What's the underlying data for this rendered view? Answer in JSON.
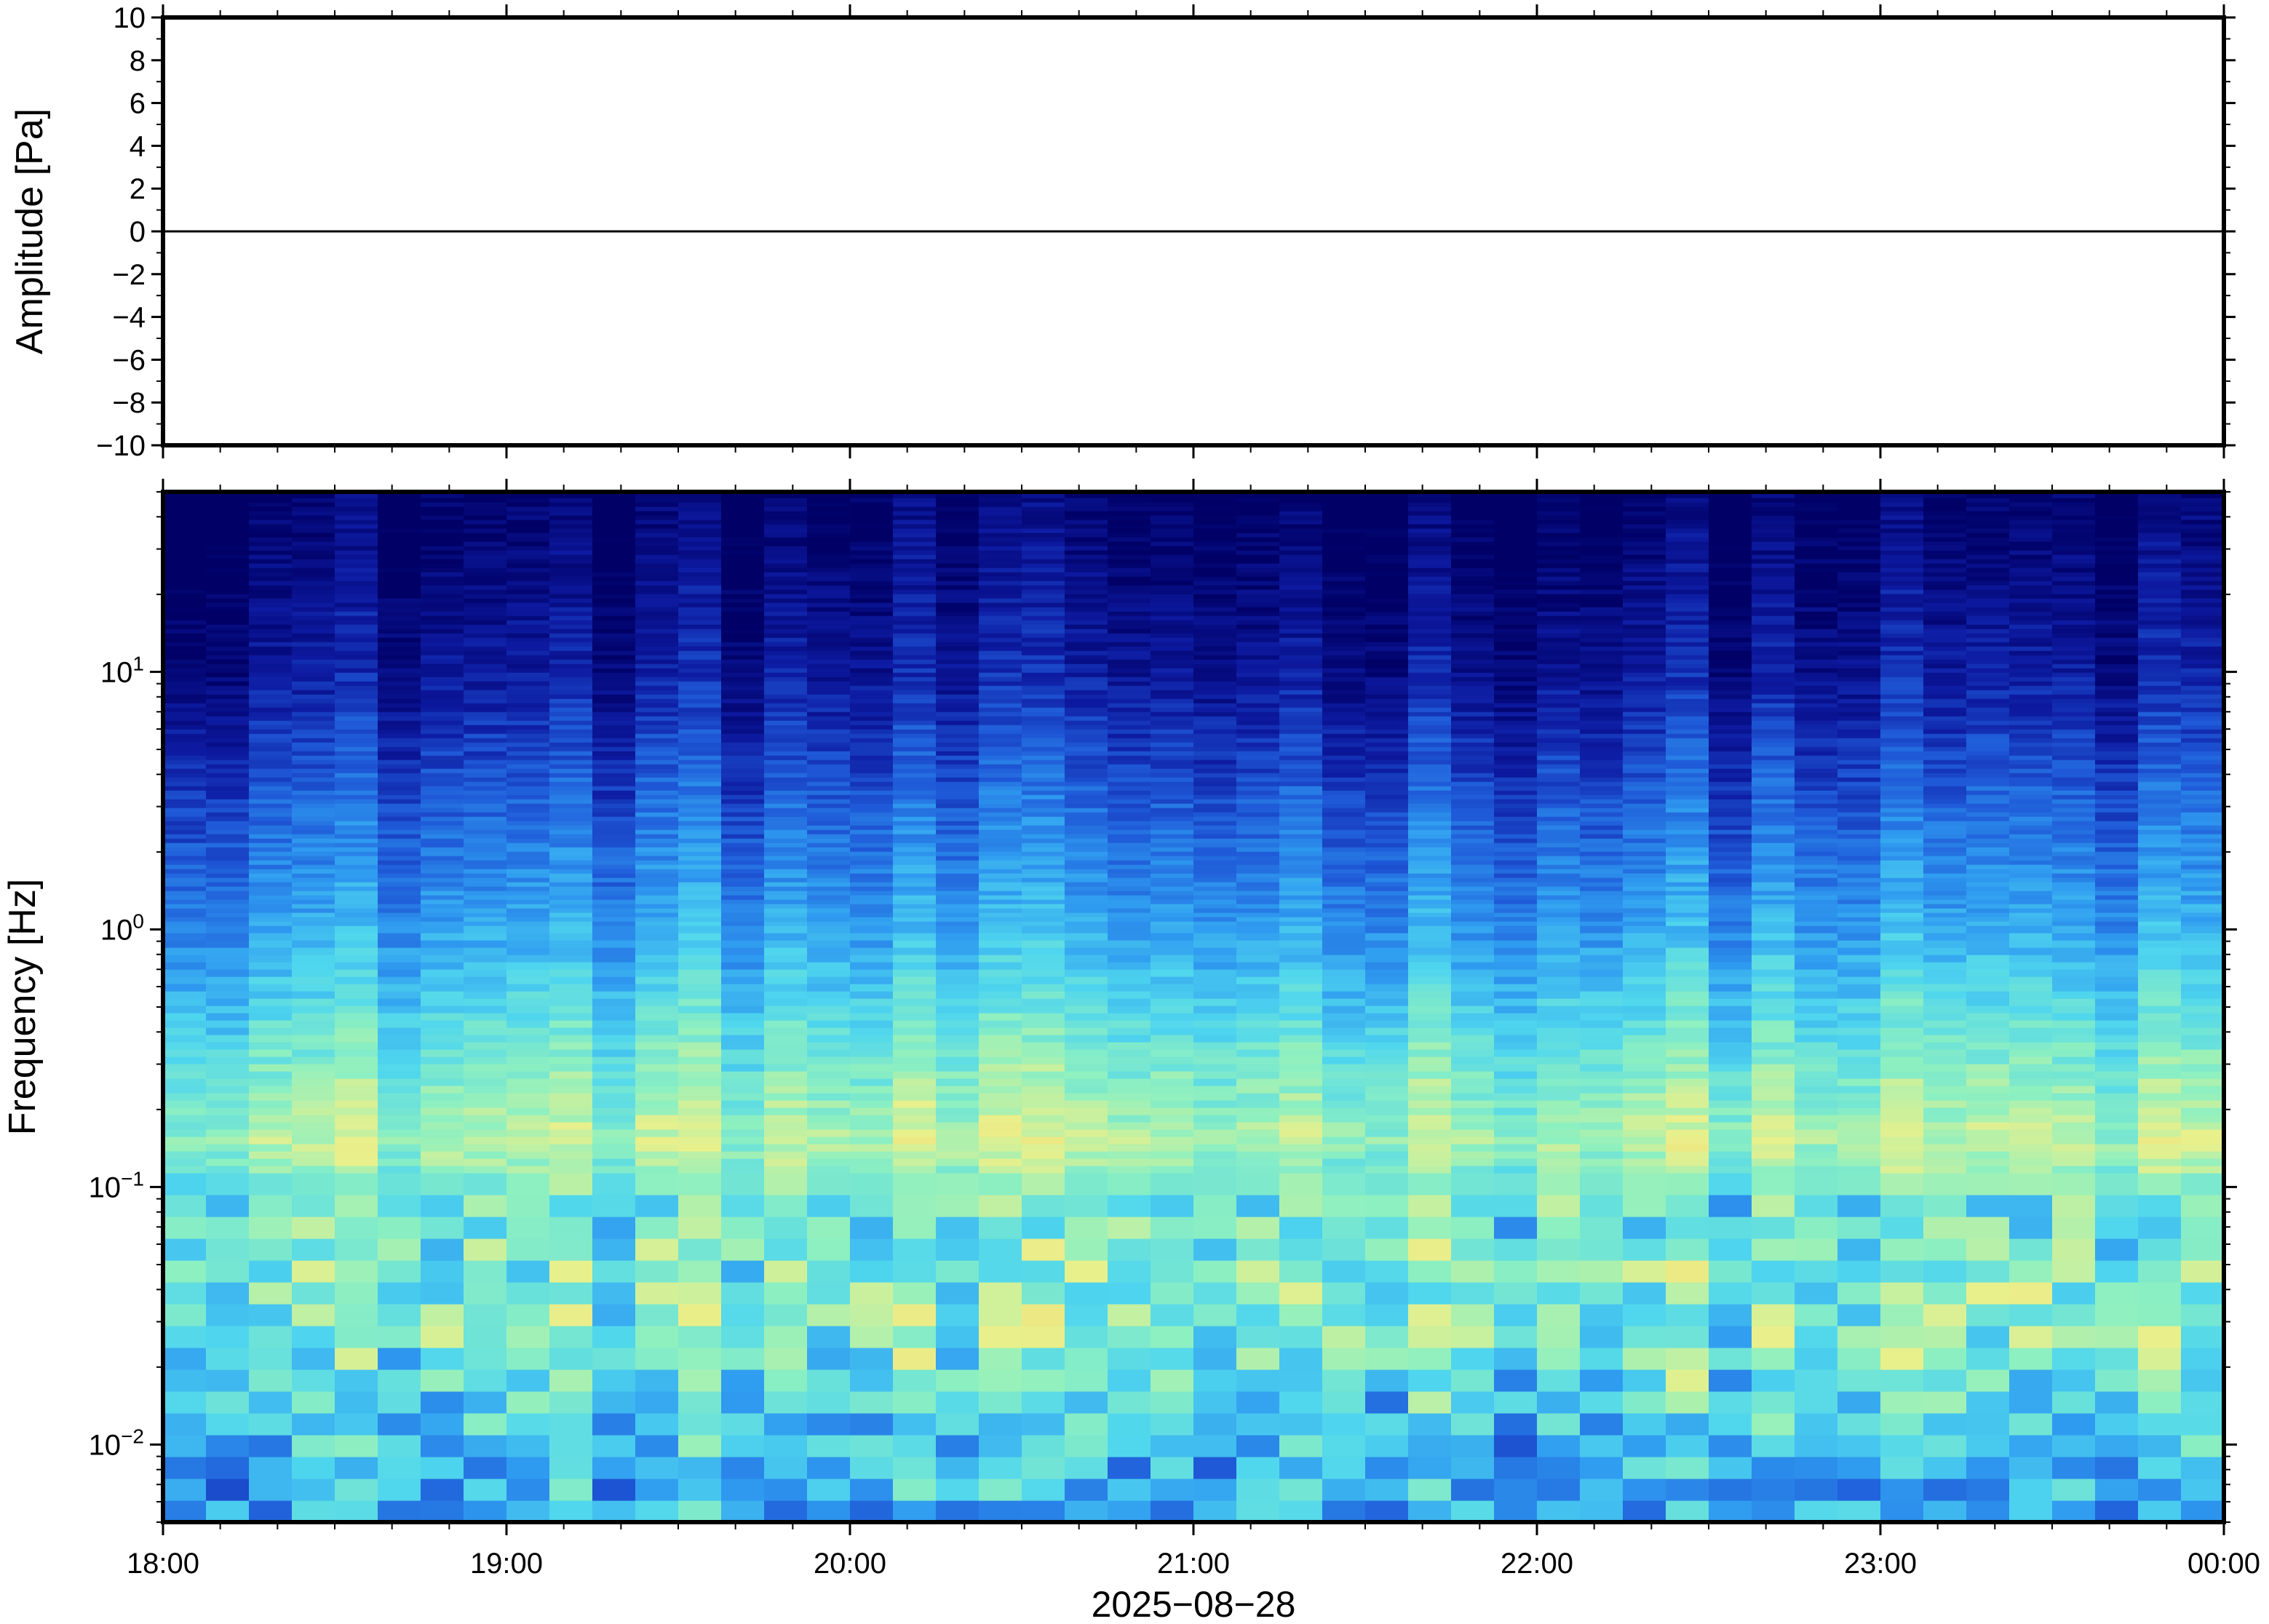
{
  "chart_data": [
    {
      "type": "line",
      "panel": "waveform",
      "ylabel": "Amplitude [Pa]",
      "ylim": [
        -10,
        10
      ],
      "yticks": [
        10,
        8,
        6,
        4,
        2,
        0,
        -2,
        -4,
        -6,
        -8,
        -10
      ],
      "ytick_labels": [
        "10",
        "8",
        "6",
        "4",
        "2",
        "0",
        "−2",
        "−4",
        "−6",
        "−8",
        "−10"
      ],
      "xlim": [
        "18:00",
        "00:00"
      ],
      "series": [
        {
          "description": "near-constant trace at 0 Pa across the full window",
          "color": "#000000",
          "x": [
            "18:00",
            "00:00"
          ],
          "y": [
            0,
            0
          ]
        }
      ],
      "grid": false
    },
    {
      "type": "heatmap",
      "panel": "spectrogram",
      "ylabel": "Frequency [Hz]",
      "yscale": "log",
      "ylim": [
        0.005,
        50
      ],
      "yticks": [
        10,
        1,
        0.1,
        0.01
      ],
      "ytick_labels": [
        {
          "base": "10",
          "exp": "1"
        },
        {
          "base": "10",
          "exp": "0"
        },
        {
          "base": "10",
          "exp": "−1"
        },
        {
          "base": "10",
          "exp": "−2"
        }
      ],
      "xlim": [
        "18:00",
        "00:00"
      ],
      "colormap": [
        "#000066",
        "#0d1aa0",
        "#1f5ad8",
        "#2f9bf0",
        "#4fd6ee",
        "#8ef0c0",
        "#e8f08c",
        "#f8d870"
      ],
      "approx_power_profile": [
        {
          "freq_hz": 50,
          "level": 0.0
        },
        {
          "freq_hz": 10,
          "level": 0.12
        },
        {
          "freq_hz": 3,
          "level": 0.3
        },
        {
          "freq_hz": 1,
          "level": 0.45
        },
        {
          "freq_hz": 0.4,
          "level": 0.62
        },
        {
          "freq_hz": 0.15,
          "level": 0.78
        },
        {
          "freq_hz": 0.08,
          "level": 0.62
        },
        {
          "freq_hz": 0.03,
          "level": 0.7
        },
        {
          "freq_hz": 0.01,
          "level": 0.5
        },
        {
          "freq_hz": 0.005,
          "level": 0.45
        }
      ],
      "grid": false
    }
  ],
  "xaxis": {
    "tick_labels": [
      "18:00",
      "19:00",
      "20:00",
      "21:00",
      "22:00",
      "23:00",
      "00:00"
    ],
    "date_label": "2025−08−28"
  }
}
